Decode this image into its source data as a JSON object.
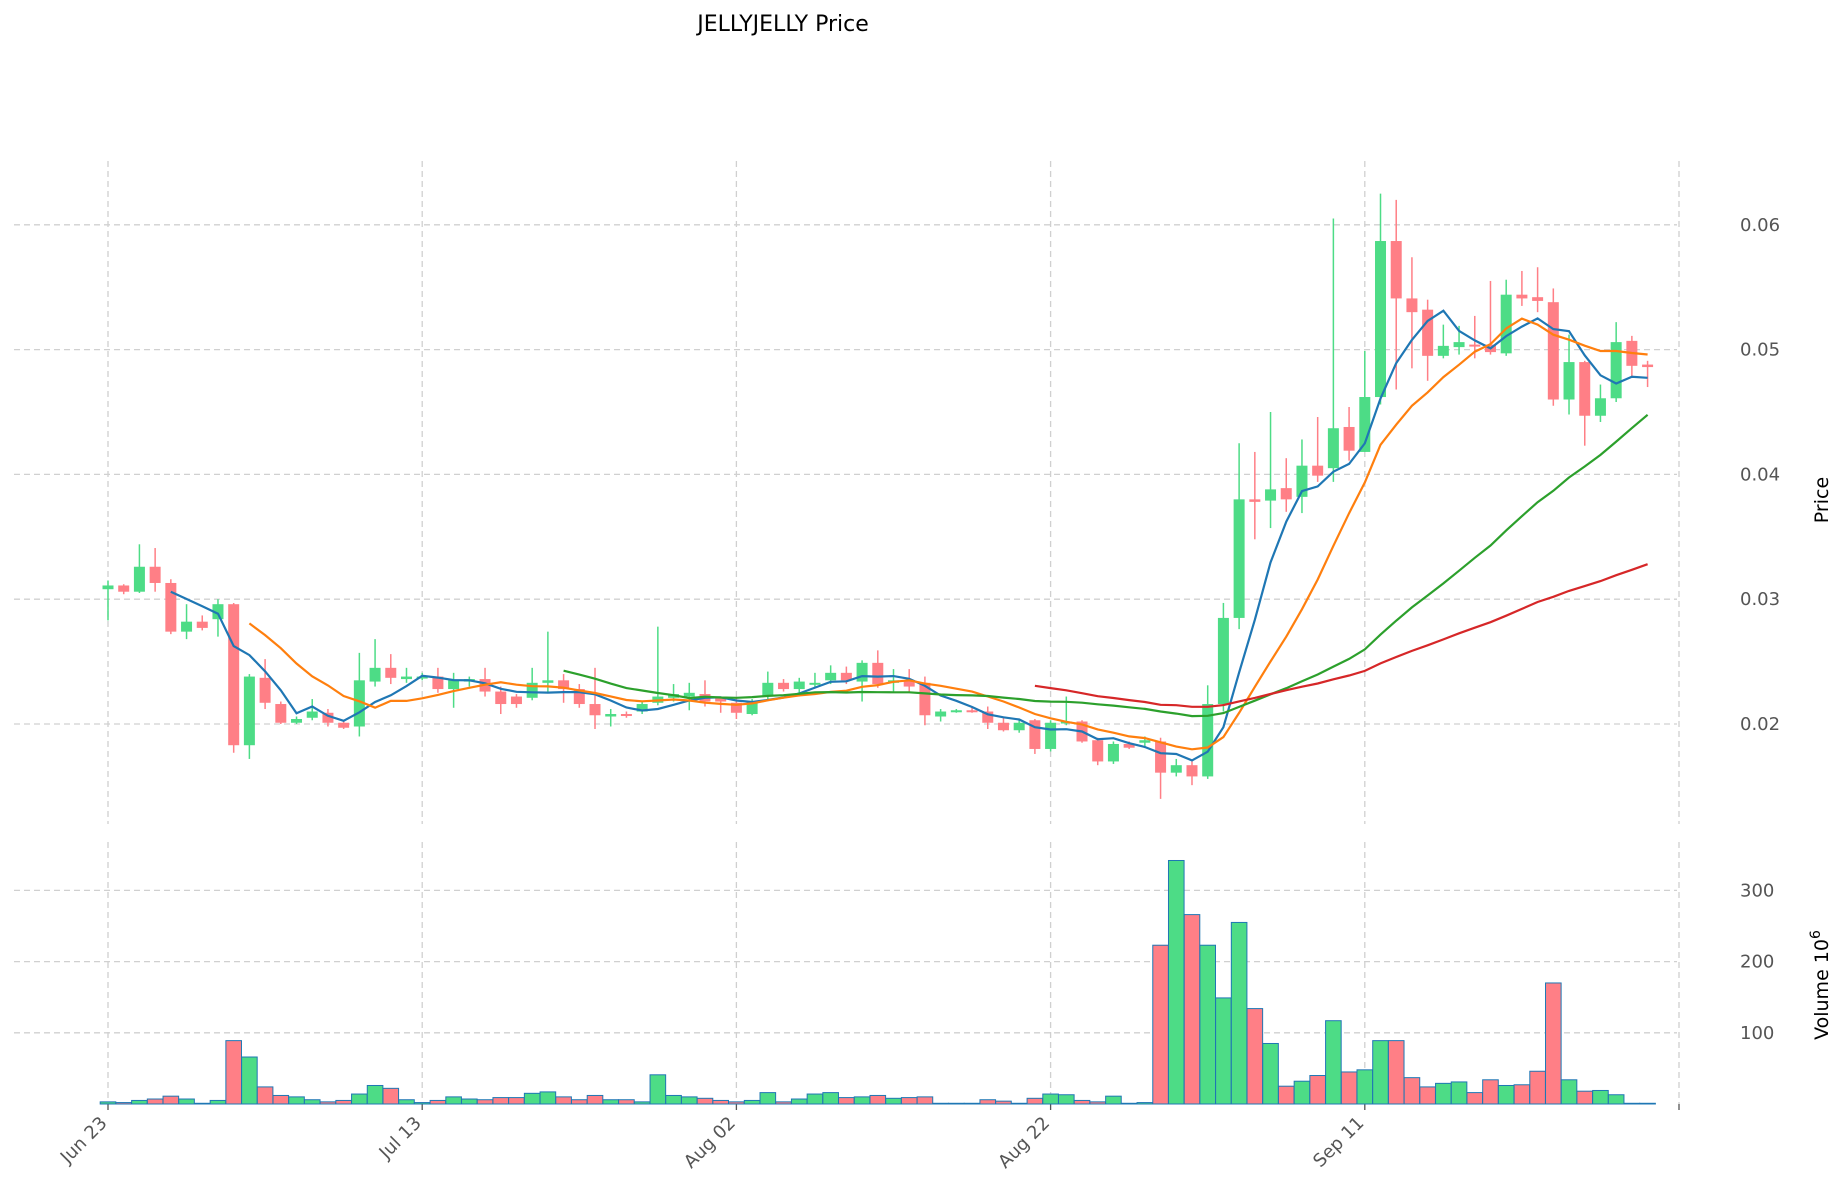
{
  "chart_data": {
    "type": "candlestick",
    "title": "JELLYJELLY Price",
    "ylabel_price": "Price",
    "ylabel_volume": "Volume",
    "volume_multiplier": "10",
    "volume_exponent": "6",
    "x_tick_labels": [
      {
        "index": 0,
        "label": "Jun 23"
      },
      {
        "index": 20,
        "label": "Jul 13"
      },
      {
        "index": 40,
        "label": "Aug 02"
      },
      {
        "index": 60,
        "label": "Aug 22"
      },
      {
        "index": 80,
        "label": "Sep 11"
      }
    ],
    "price_ticks": [
      0.02,
      0.03,
      0.04,
      0.05,
      0.06
    ],
    "price_tick_labels": [
      "0.02",
      "0.03",
      "0.04",
      "0.05",
      "0.06"
    ],
    "volume_ticks": [
      100,
      200,
      300
    ],
    "volume_tick_labels": [
      "100",
      "200",
      "300"
    ],
    "price_range": [
      0.0095,
      0.065
    ],
    "volume_range": [
      0,
      370
    ],
    "moving_average_windows": [
      5,
      10,
      30,
      60
    ],
    "colors": {
      "up": "#4ddc86",
      "down": "#ff7f86",
      "ma": [
        "#1f77b4",
        "#ff7f0e",
        "#2ca02c",
        "#d62728"
      ],
      "volume_edge": "#1f77b4",
      "grid": "#d0d0d0"
    },
    "ohlc": [
      [
        0.0308,
        0.0315,
        0.0283,
        0.0311
      ],
      [
        0.0311,
        0.0312,
        0.0304,
        0.0306
      ],
      [
        0.0306,
        0.0344,
        0.0305,
        0.0326
      ],
      [
        0.0326,
        0.0341,
        0.0306,
        0.0313
      ],
      [
        0.0313,
        0.0316,
        0.0272,
        0.0274
      ],
      [
        0.0274,
        0.0296,
        0.0268,
        0.0282
      ],
      [
        0.0282,
        0.0287,
        0.0275,
        0.0277
      ],
      [
        0.0284,
        0.03,
        0.027,
        0.0296
      ],
      [
        0.0296,
        0.0297,
        0.0177,
        0.0183
      ],
      [
        0.0183,
        0.024,
        0.0172,
        0.0238
      ],
      [
        0.0237,
        0.0252,
        0.0212,
        0.0217
      ],
      [
        0.0216,
        0.0218,
        0.02,
        0.0201
      ],
      [
        0.0201,
        0.0206,
        0.02,
        0.0204
      ],
      [
        0.0205,
        0.022,
        0.0203,
        0.021
      ],
      [
        0.0209,
        0.0212,
        0.0198,
        0.0201
      ],
      [
        0.0201,
        0.0203,
        0.0196,
        0.0197
      ],
      [
        0.0198,
        0.0257,
        0.019,
        0.0235
      ],
      [
        0.0234,
        0.0268,
        0.023,
        0.0245
      ],
      [
        0.0245,
        0.0256,
        0.0232,
        0.0237
      ],
      [
        0.0236,
        0.0245,
        0.0233,
        0.0238
      ],
      [
        0.0237,
        0.0241,
        0.0235,
        0.0238
      ],
      [
        0.0238,
        0.0245,
        0.0225,
        0.0228
      ],
      [
        0.0228,
        0.0241,
        0.0213,
        0.0235
      ],
      [
        0.0234,
        0.0238,
        0.023,
        0.0236
      ],
      [
        0.0236,
        0.0245,
        0.0222,
        0.0226
      ],
      [
        0.0226,
        0.023,
        0.0208,
        0.0216
      ],
      [
        0.0222,
        0.0224,
        0.0213,
        0.0216
      ],
      [
        0.0221,
        0.0245,
        0.0219,
        0.0233
      ],
      [
        0.0233,
        0.0274,
        0.0225,
        0.0235
      ],
      [
        0.0235,
        0.024,
        0.0217,
        0.0228
      ],
      [
        0.0228,
        0.0232,
        0.0213,
        0.0216
      ],
      [
        0.0216,
        0.0245,
        0.0196,
        0.0207
      ],
      [
        0.0206,
        0.0212,
        0.0198,
        0.0208
      ],
      [
        0.0208,
        0.021,
        0.0205,
        0.0207
      ],
      [
        0.021,
        0.0218,
        0.0208,
        0.0216
      ],
      [
        0.0217,
        0.0278,
        0.0215,
        0.0222
      ],
      [
        0.0221,
        0.0232,
        0.0218,
        0.0224
      ],
      [
        0.0222,
        0.0233,
        0.0211,
        0.0225
      ],
      [
        0.0224,
        0.0235,
        0.0214,
        0.0218
      ],
      [
        0.0221,
        0.0222,
        0.0209,
        0.0218
      ],
      [
        0.0217,
        0.0221,
        0.0204,
        0.0209
      ],
      [
        0.0208,
        0.022,
        0.0207,
        0.0218
      ],
      [
        0.0222,
        0.0242,
        0.022,
        0.0233
      ],
      [
        0.0233,
        0.0236,
        0.0226,
        0.0228
      ],
      [
        0.0228,
        0.0237,
        0.0222,
        0.0234
      ],
      [
        0.0232,
        0.0241,
        0.0229,
        0.0233
      ],
      [
        0.0235,
        0.0247,
        0.0232,
        0.0241
      ],
      [
        0.0241,
        0.0246,
        0.0232,
        0.0235
      ],
      [
        0.0234,
        0.0251,
        0.0218,
        0.0249
      ],
      [
        0.0249,
        0.0259,
        0.0229,
        0.0232
      ],
      [
        0.0233,
        0.0244,
        0.0226,
        0.0235
      ],
      [
        0.0235,
        0.0244,
        0.0226,
        0.023
      ],
      [
        0.0233,
        0.0238,
        0.0199,
        0.0207
      ],
      [
        0.0206,
        0.0212,
        0.0202,
        0.021
      ],
      [
        0.021,
        0.0212,
        0.0209,
        0.0211
      ],
      [
        0.0211,
        0.0213,
        0.0209,
        0.021
      ],
      [
        0.021,
        0.0214,
        0.0196,
        0.0201
      ],
      [
        0.0201,
        0.0206,
        0.0194,
        0.0195
      ],
      [
        0.0195,
        0.0203,
        0.0193,
        0.0201
      ],
      [
        0.0203,
        0.0204,
        0.0176,
        0.018
      ],
      [
        0.018,
        0.0203,
        0.0178,
        0.0201
      ],
      [
        0.0201,
        0.0222,
        0.0199,
        0.0202
      ],
      [
        0.0202,
        0.0203,
        0.0185,
        0.0186
      ],
      [
        0.0187,
        0.0189,
        0.0167,
        0.017
      ],
      [
        0.017,
        0.0186,
        0.0168,
        0.0184
      ],
      [
        0.0184,
        0.0186,
        0.018,
        0.0181
      ],
      [
        0.0185,
        0.019,
        0.0181,
        0.0187
      ],
      [
        0.0186,
        0.0189,
        0.014,
        0.0161
      ],
      [
        0.0161,
        0.0172,
        0.0158,
        0.0167
      ],
      [
        0.0167,
        0.017,
        0.0151,
        0.0158
      ],
      [
        0.0158,
        0.0231,
        0.0156,
        0.0216
      ],
      [
        0.0216,
        0.0297,
        0.021,
        0.0285
      ],
      [
        0.0285,
        0.0425,
        0.0276,
        0.038
      ],
      [
        0.038,
        0.0418,
        0.0348,
        0.0378
      ],
      [
        0.0379,
        0.045,
        0.0357,
        0.0388
      ],
      [
        0.0389,
        0.0413,
        0.037,
        0.038
      ],
      [
        0.0382,
        0.0428,
        0.0369,
        0.0407
      ],
      [
        0.0407,
        0.0446,
        0.0394,
        0.0399
      ],
      [
        0.0405,
        0.0605,
        0.0394,
        0.0437
      ],
      [
        0.0438,
        0.0454,
        0.0411,
        0.0419
      ],
      [
        0.0418,
        0.0499,
        0.0418,
        0.0462
      ],
      [
        0.0462,
        0.0625,
        0.0456,
        0.0587
      ],
      [
        0.0587,
        0.062,
        0.0468,
        0.0541
      ],
      [
        0.0541,
        0.0574,
        0.0485,
        0.053
      ],
      [
        0.0532,
        0.054,
        0.0475,
        0.0495
      ],
      [
        0.0495,
        0.052,
        0.0493,
        0.0503
      ],
      [
        0.0502,
        0.0519,
        0.0496,
        0.0506
      ],
      [
        0.0504,
        0.0527,
        0.0493,
        0.0503
      ],
      [
        0.0504,
        0.0555,
        0.0496,
        0.0498
      ],
      [
        0.0497,
        0.0556,
        0.0495,
        0.0544
      ],
      [
        0.0544,
        0.0563,
        0.0535,
        0.0541
      ],
      [
        0.0542,
        0.0566,
        0.053,
        0.0539
      ],
      [
        0.0538,
        0.0549,
        0.0455,
        0.046
      ],
      [
        0.046,
        0.0512,
        0.0448,
        0.049
      ],
      [
        0.049,
        0.0491,
        0.0423,
        0.0447
      ],
      [
        0.0447,
        0.0472,
        0.0442,
        0.0461
      ],
      [
        0.0461,
        0.0522,
        0.0458,
        0.0506
      ],
      [
        0.0507,
        0.0511,
        0.0478,
        0.0487
      ],
      [
        0.0488,
        0.0491,
        0.047,
        0.0486
      ]
    ],
    "volume": [
      3,
      2,
      5,
      7,
      11,
      7,
      1,
      5,
      89,
      66,
      24,
      12,
      10,
      6,
      3,
      5,
      14,
      26,
      22,
      6,
      2,
      5,
      10,
      7,
      6,
      9,
      9,
      15,
      17,
      10,
      6,
      12,
      6,
      6,
      3,
      41,
      12,
      10,
      8,
      5,
      3,
      5,
      16,
      3,
      7,
      14,
      16,
      9,
      10,
      12,
      8,
      9,
      10,
      1,
      1,
      1,
      6,
      4,
      1,
      8,
      14,
      13,
      5,
      3,
      11,
      1,
      2,
      223,
      342,
      266,
      223,
      149,
      255,
      134,
      85,
      25,
      32,
      40,
      117,
      45,
      48,
      89,
      89,
      37,
      24,
      29,
      31,
      16,
      34,
      26,
      27,
      46,
      170,
      34,
      18,
      19,
      13,
      1,
      1
    ]
  }
}
